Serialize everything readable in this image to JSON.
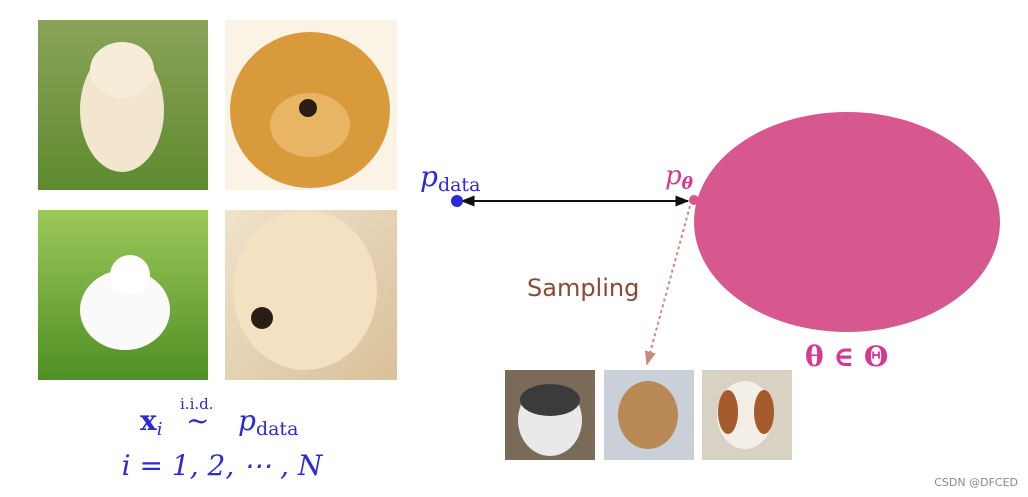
{
  "labels": {
    "p_data": {
      "base": "p",
      "sub": "data"
    },
    "p_theta": {
      "base": "p",
      "sub": "θ"
    },
    "sampling": "Sampling",
    "param_space": "θ ∈ Θ"
  },
  "formula": {
    "line1": {
      "x": "x",
      "x_sub": "i",
      "over": "i.i.d.",
      "rel": "~",
      "p": "p",
      "p_sub": "data"
    },
    "line2": "i = 1, 2, ⋯ , N"
  },
  "watermark": "CSDN @DFCED"
}
